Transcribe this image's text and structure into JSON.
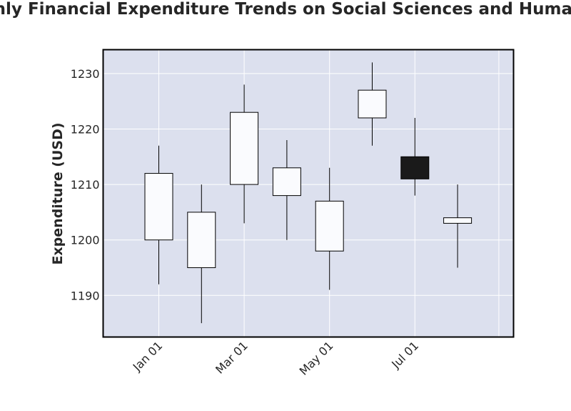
{
  "chart_data": {
    "type": "candlestick",
    "title": "Monthly Financial Expenditure Trends on Social Sciences and Humanities",
    "xlabel": "",
    "ylabel": "Expenditure (USD)",
    "x_tick_labels": [
      "Jan 01",
      "Mar 01",
      "May 01",
      "Jul 01"
    ],
    "y_ticks": [
      1190,
      1200,
      1210,
      1220,
      1230
    ],
    "ylim": [
      1182.5,
      1234.3
    ],
    "grid": true,
    "colors": {
      "plot_background": "#dce0ee",
      "grid": "#ffffff",
      "up_body": "#fafbfe",
      "down_body": "#1a1a1a",
      "edge": "#000000"
    },
    "candles": [
      {
        "date": "Jan 01",
        "open": 1200,
        "high": 1217,
        "low": 1192,
        "close": 1212
      },
      {
        "date": "Feb 01",
        "open": 1195,
        "high": 1210,
        "low": 1185,
        "close": 1205
      },
      {
        "date": "Mar 01",
        "open": 1210,
        "high": 1228,
        "low": 1203,
        "close": 1223
      },
      {
        "date": "Apr 01",
        "open": 1208,
        "high": 1218,
        "low": 1200,
        "close": 1213
      },
      {
        "date": "May 01",
        "open": 1198,
        "high": 1213,
        "low": 1191,
        "close": 1207
      },
      {
        "date": "Jun 01",
        "open": 1222,
        "high": 1232,
        "low": 1217,
        "close": 1227
      },
      {
        "date": "Jul 01",
        "open": 1215,
        "high": 1222,
        "low": 1208,
        "close": 1211
      },
      {
        "date": "Aug 01",
        "open": 1203,
        "high": 1210,
        "low": 1195,
        "close": 1204
      }
    ]
  }
}
